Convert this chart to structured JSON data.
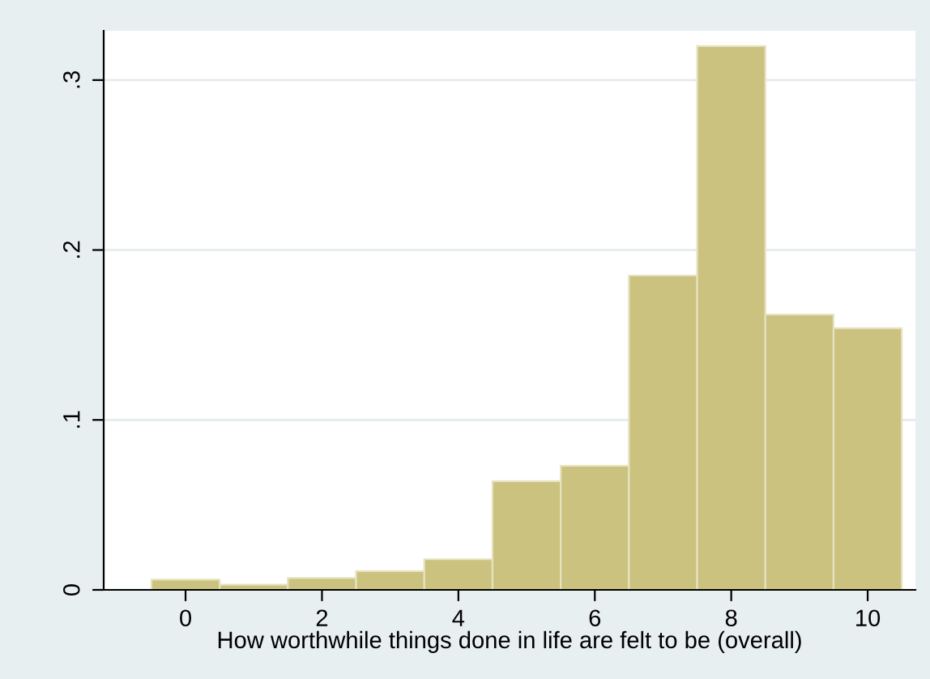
{
  "chart_data": {
    "type": "histogram",
    "xlabel": "How worthwhile things done in life are felt to be (overall)",
    "bins": [
      -0.5,
      0.5,
      1.5,
      2.5,
      3.5,
      4.5,
      5.5,
      6.5,
      7.5,
      8.5,
      9.5,
      10.5
    ],
    "values": [
      0.006,
      0.003,
      0.007,
      0.011,
      0.018,
      0.064,
      0.073,
      0.185,
      0.32,
      0.162,
      0.154
    ],
    "color": "#cbc27f",
    "xlim": [
      -1.2,
      10.7
    ],
    "xticks": [
      0,
      2,
      4,
      6,
      8,
      10
    ],
    "ylim": [
      0,
      0.329
    ],
    "yticks": [
      {
        "value": 0,
        "label": "0"
      },
      {
        "value": 0.1,
        "label": ".1"
      },
      {
        "value": 0.2,
        "label": ".2"
      },
      {
        "value": 0.3,
        "label": ".3"
      }
    ],
    "grid": "y"
  }
}
